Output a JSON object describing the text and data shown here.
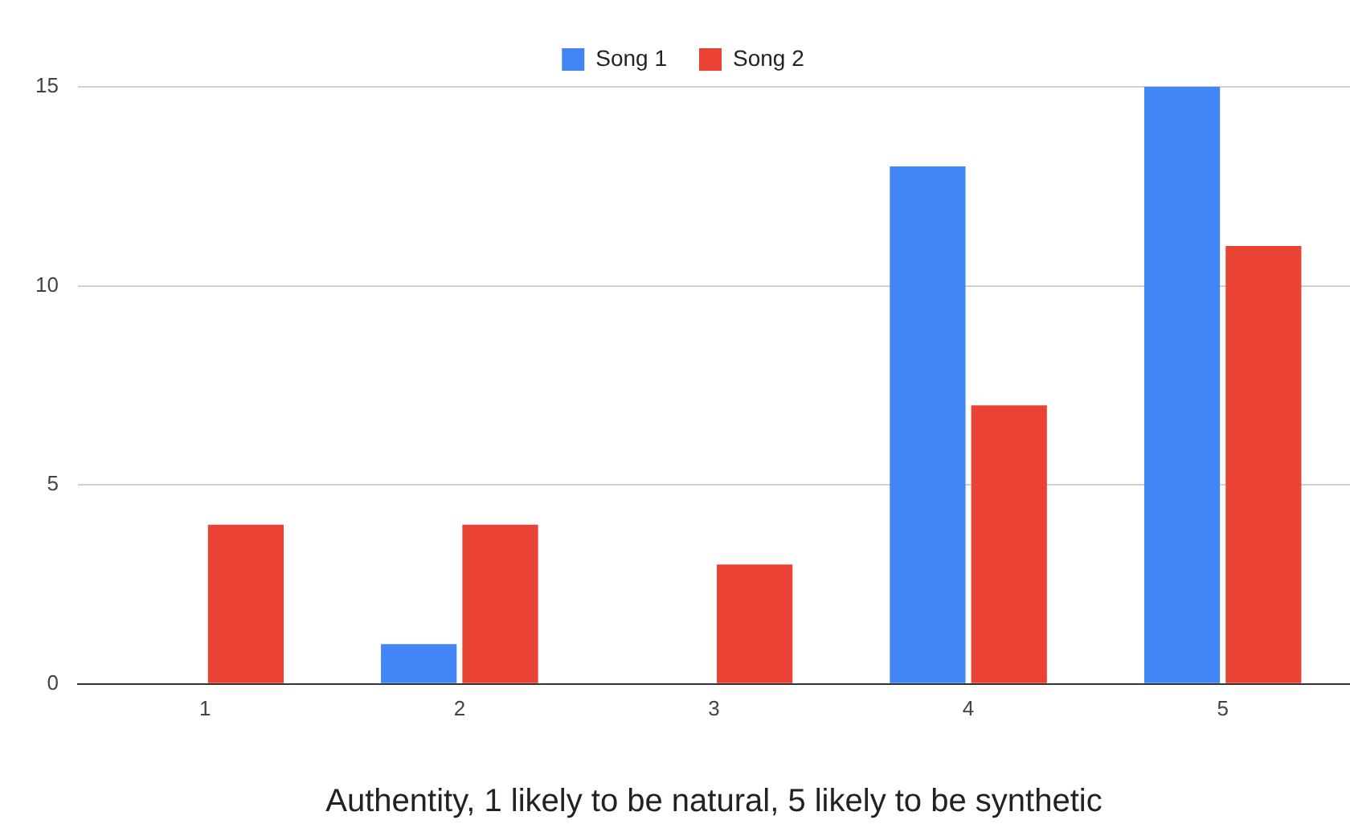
{
  "chart_data": {
    "type": "bar",
    "xlabel": "Authentity, 1 likely to be natural, 5 likely to be synthetic",
    "categories": [
      "1",
      "2",
      "3",
      "4",
      "5"
    ],
    "series": [
      {
        "name": "Song 1",
        "color": "#4285f4",
        "values": [
          0,
          1,
          0,
          13,
          15
        ]
      },
      {
        "name": "Song 2",
        "color": "#ea4335",
        "values": [
          4,
          4,
          3,
          7,
          11
        ]
      }
    ],
    "ylim": [
      0,
      15
    ],
    "yticks": [
      0,
      5,
      10,
      15
    ],
    "grid": "y",
    "legend": "top"
  }
}
